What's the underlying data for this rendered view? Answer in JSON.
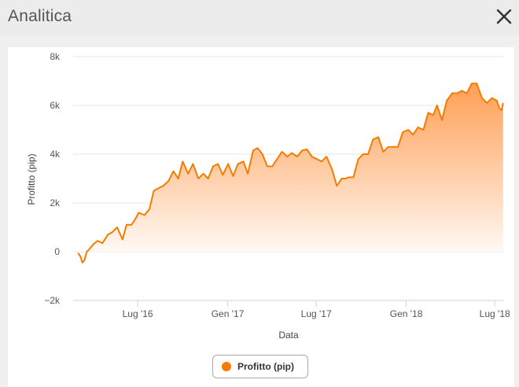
{
  "window": {
    "title": "Analitica",
    "close_icon": "close-icon"
  },
  "colors": {
    "series": "#f57c00",
    "area_top": "#ff9a4d",
    "grid": "#e6e6e6",
    "x_axis": "#ccd6eb"
  },
  "chart_data": {
    "type": "area",
    "xlabel": "Data",
    "ylabel": "Profitto (pip)",
    "ylim": [
      -2000,
      8000
    ],
    "y_ticks": [
      -2000,
      0,
      2000,
      4000,
      6000,
      8000
    ],
    "y_tick_labels": [
      "−2k",
      "0",
      "2k",
      "4k",
      "6k",
      "8k"
    ],
    "x_range": [
      "2016-02-20",
      "2018-07-20"
    ],
    "x_ticks": [
      "2016-07-01",
      "2017-01-01",
      "2017-07-01",
      "2018-01-01",
      "2018-07-01"
    ],
    "x_tick_labels": [
      "Lug '16",
      "Gen '17",
      "Lug '17",
      "Gen '18",
      "Lug '18"
    ],
    "grid": true,
    "legend_position": "bottom-center",
    "series": [
      {
        "name": "Profitto (pip)",
        "x": [
          "2016-03-01",
          "2016-03-06",
          "2016-03-10",
          "2016-03-14",
          "2016-03-19",
          "2016-03-24",
          "2016-04-01",
          "2016-04-10",
          "2016-04-20",
          "2016-05-01",
          "2016-05-10",
          "2016-05-20",
          "2016-05-31",
          "2016-06-08",
          "2016-06-18",
          "2016-06-25",
          "2016-07-03",
          "2016-07-15",
          "2016-07-25",
          "2016-08-03",
          "2016-08-12",
          "2016-08-22",
          "2016-09-02",
          "2016-09-12",
          "2016-09-22",
          "2016-10-01",
          "2016-10-12",
          "2016-10-22",
          "2016-11-02",
          "2016-11-12",
          "2016-11-22",
          "2016-12-02",
          "2016-12-12",
          "2016-12-22",
          "2017-01-02",
          "2017-01-12",
          "2017-01-22",
          "2017-02-02",
          "2017-02-11",
          "2017-02-22",
          "2017-03-03",
          "2017-03-13",
          "2017-03-23",
          "2017-04-02",
          "2017-04-12",
          "2017-04-22",
          "2017-05-03",
          "2017-05-12",
          "2017-05-23",
          "2017-06-02",
          "2017-06-12",
          "2017-06-22",
          "2017-07-02",
          "2017-07-12",
          "2017-07-22",
          "2017-08-02",
          "2017-08-12",
          "2017-08-22",
          "2017-08-30",
          "2017-09-05",
          "2017-09-15",
          "2017-09-25",
          "2017-10-05",
          "2017-10-15",
          "2017-10-25",
          "2017-11-05",
          "2017-11-15",
          "2017-11-25",
          "2017-12-05",
          "2017-12-15",
          "2017-12-25",
          "2018-01-05",
          "2018-01-15",
          "2018-01-25",
          "2018-02-05",
          "2018-02-15",
          "2018-02-25",
          "2018-03-05",
          "2018-03-15",
          "2018-03-25",
          "2018-04-05",
          "2018-04-15",
          "2018-04-25",
          "2018-05-05",
          "2018-05-15",
          "2018-05-25",
          "2018-06-05",
          "2018-06-15",
          "2018-06-25",
          "2018-07-05",
          "2018-07-10",
          "2018-07-15",
          "2018-07-18"
        ],
        "y": [
          -50,
          -200,
          -450,
          -350,
          0,
          100,
          300,
          450,
          350,
          700,
          800,
          1000,
          500,
          1100,
          1100,
          1300,
          1600,
          1500,
          1750,
          2500,
          2600,
          2700,
          2900,
          3300,
          3000,
          3700,
          3200,
          3600,
          3000,
          3200,
          3000,
          3500,
          3600,
          3150,
          3600,
          3100,
          3600,
          3700,
          3200,
          4150,
          4250,
          4000,
          3500,
          3500,
          3800,
          4100,
          3900,
          4050,
          3900,
          4150,
          4200,
          3900,
          3800,
          3700,
          3900,
          3400,
          2700,
          3000,
          3000,
          3050,
          3050,
          3800,
          4000,
          4000,
          4600,
          4700,
          4100,
          4300,
          4300,
          4300,
          4900,
          5000,
          4800,
          5100,
          5000,
          5700,
          5600,
          6000,
          5400,
          6200,
          6500,
          6500,
          6600,
          6500,
          6900,
          6900,
          6300,
          6100,
          6300,
          6200,
          5900,
          5800,
          6100
        ]
      }
    ]
  }
}
